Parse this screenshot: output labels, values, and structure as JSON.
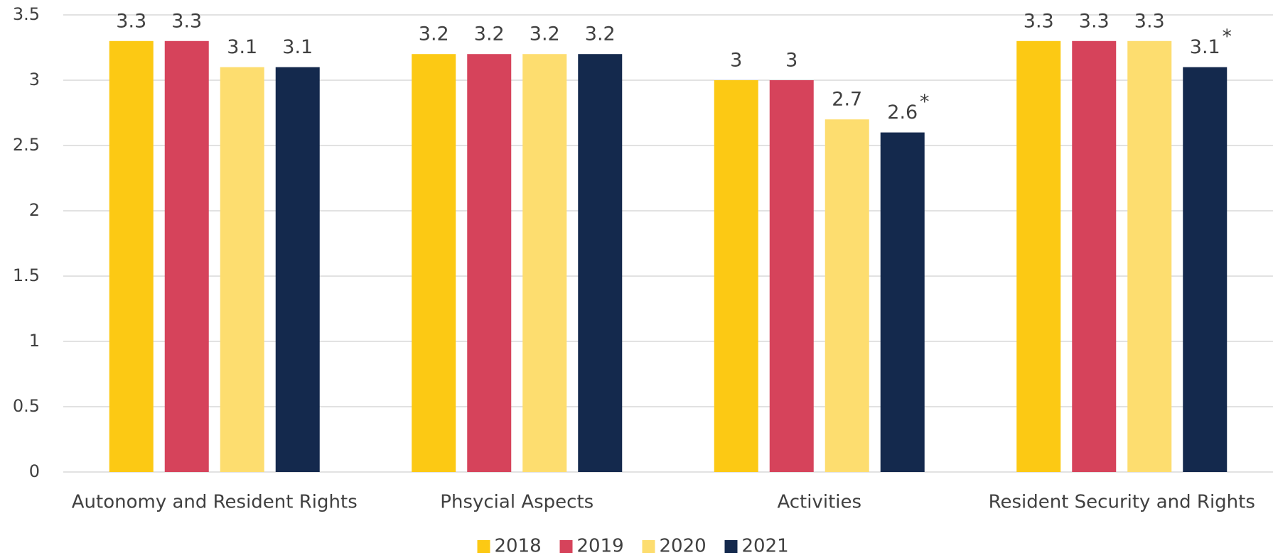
{
  "chart_data": {
    "type": "bar",
    "categories": [
      "Autonomy and Resident Rights",
      "Phsycial Aspects",
      "Activities",
      "Resident Security and Rights"
    ],
    "series": [
      {
        "name": "2018",
        "color": "#fcc914",
        "values": [
          3.3,
          3.2,
          3,
          3.3
        ]
      },
      {
        "name": "2019",
        "color": "#d6435b",
        "values": [
          3.3,
          3.2,
          3,
          3.3
        ]
      },
      {
        "name": "2020",
        "color": "#fddd6f",
        "values": [
          3.1,
          3.2,
          2.7,
          3.3
        ]
      },
      {
        "name": "2021",
        "color": "#14294d",
        "values": [
          3.1,
          3.2,
          2.6,
          3.1
        ]
      }
    ],
    "annotations": [
      {
        "text": "*",
        "category": "Activities",
        "series": "2021"
      },
      {
        "text": "*",
        "category": "Resident Security and Rights",
        "series": "2021"
      }
    ],
    "ylim": [
      0,
      3.5
    ],
    "yticks": [
      0,
      0.5,
      1,
      1.5,
      2,
      2.5,
      3,
      3.5
    ],
    "grid": true,
    "legend": "bottom"
  }
}
